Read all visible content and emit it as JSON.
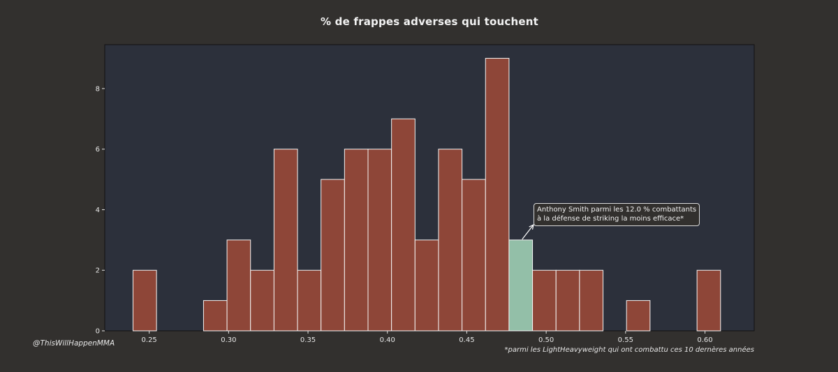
{
  "chart_data": {
    "type": "bar",
    "title": "% de frappes adverses qui touchent",
    "xlabel": "",
    "ylabel": "",
    "xlim": [
      0.222,
      0.631
    ],
    "ylim": [
      0,
      9.45
    ],
    "x_ticks": [
      "0.25",
      "0.30",
      "0.35",
      "0.40",
      "0.45",
      "0.50",
      "0.55",
      "0.60"
    ],
    "y_ticks": [
      "0",
      "2",
      "4",
      "6",
      "8"
    ],
    "bins": [
      {
        "x0": 0.2398,
        "x1": 0.2546,
        "count": 2
      },
      {
        "x0": 0.2546,
        "x1": 0.2694,
        "count": 0
      },
      {
        "x0": 0.2694,
        "x1": 0.2842,
        "count": 0
      },
      {
        "x0": 0.2842,
        "x1": 0.299,
        "count": 1
      },
      {
        "x0": 0.299,
        "x1": 0.3138,
        "count": 3
      },
      {
        "x0": 0.3138,
        "x1": 0.3286,
        "count": 2
      },
      {
        "x0": 0.3286,
        "x1": 0.3434,
        "count": 6
      },
      {
        "x0": 0.3434,
        "x1": 0.3582,
        "count": 2
      },
      {
        "x0": 0.3582,
        "x1": 0.373,
        "count": 5
      },
      {
        "x0": 0.373,
        "x1": 0.3878,
        "count": 6
      },
      {
        "x0": 0.3878,
        "x1": 0.4026,
        "count": 6
      },
      {
        "x0": 0.4026,
        "x1": 0.4174,
        "count": 7
      },
      {
        "x0": 0.4174,
        "x1": 0.4322,
        "count": 3
      },
      {
        "x0": 0.4322,
        "x1": 0.447,
        "count": 6
      },
      {
        "x0": 0.447,
        "x1": 0.4618,
        "count": 5
      },
      {
        "x0": 0.4618,
        "x1": 0.4766,
        "count": 9
      },
      {
        "x0": 0.4766,
        "x1": 0.4914,
        "count": 3,
        "highlight": true
      },
      {
        "x0": 0.4914,
        "x1": 0.5062,
        "count": 2
      },
      {
        "x0": 0.5062,
        "x1": 0.521,
        "count": 2
      },
      {
        "x0": 0.521,
        "x1": 0.5358,
        "count": 2
      },
      {
        "x0": 0.5358,
        "x1": 0.5506,
        "count": 0
      },
      {
        "x0": 0.5506,
        "x1": 0.5654,
        "count": 1
      },
      {
        "x0": 0.5654,
        "x1": 0.5802,
        "count": 0
      },
      {
        "x0": 0.5802,
        "x1": 0.595,
        "count": 0
      },
      {
        "x0": 0.595,
        "x1": 0.6098,
        "count": 2
      }
    ],
    "annotation": {
      "line1": "Anthony Smith parmi les 12.0 % combattants",
      "line2": "à la défense de striking la moins efficace*",
      "points_to_x": 0.484,
      "points_to_y": 3
    },
    "colors": {
      "background": "#32302e",
      "plot_background": "#2c303b",
      "bar": "#8e4638",
      "highlight": "#93bfa8",
      "bar_edge": "#f5f5f5"
    },
    "grid": false,
    "legend": "none"
  },
  "watermark": "@ThisWillHappenMMA",
  "footnote": "*parmi les LightHeavyweight qui ont combattu ces 10 dernères années"
}
